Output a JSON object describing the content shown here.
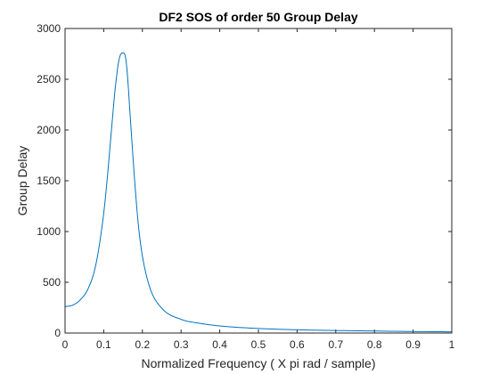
{
  "chart_data": {
    "type": "line",
    "title": "DF2 SOS of order 50 Group Delay",
    "xlabel": "Normalized Frequency ( X pi rad / sample)",
    "ylabel": "Group Delay",
    "xlim": [
      0,
      1
    ],
    "ylim": [
      0,
      3000
    ],
    "xticks": [
      0,
      0.1,
      0.2,
      0.3,
      0.4,
      0.5,
      0.6,
      0.7,
      0.8,
      0.9,
      1
    ],
    "xtick_labels": [
      "0",
      "0.1",
      "0.2",
      "0.3",
      "0.4",
      "0.5",
      "0.6",
      "0.7",
      "0.8",
      "0.9",
      "1"
    ],
    "yticks": [
      0,
      500,
      1000,
      1500,
      2000,
      2500,
      3000
    ],
    "ytick_labels": [
      "0",
      "500",
      "1000",
      "1500",
      "2000",
      "2500",
      "3000"
    ],
    "grid": false,
    "box": true,
    "line_color": "#0072BD",
    "axis_color": "#262626",
    "series": [
      {
        "x": [
          0,
          0.02,
          0.04,
          0.06,
          0.08,
          0.1,
          0.11,
          0.12,
          0.13,
          0.14,
          0.15,
          0.155,
          0.16,
          0.17,
          0.18,
          0.19,
          0.2,
          0.22,
          0.25,
          0.3,
          0.35,
          0.4,
          0.5,
          0.6,
          0.7,
          0.8,
          0.9,
          1.0
        ],
        "y": [
          260,
          275,
          330,
          440,
          680,
          1180,
          1560,
          2000,
          2420,
          2700,
          2760,
          2740,
          2600,
          2050,
          1500,
          1050,
          760,
          440,
          245,
          135,
          95,
          70,
          45,
          32,
          25,
          20,
          15,
          12
        ]
      }
    ]
  }
}
